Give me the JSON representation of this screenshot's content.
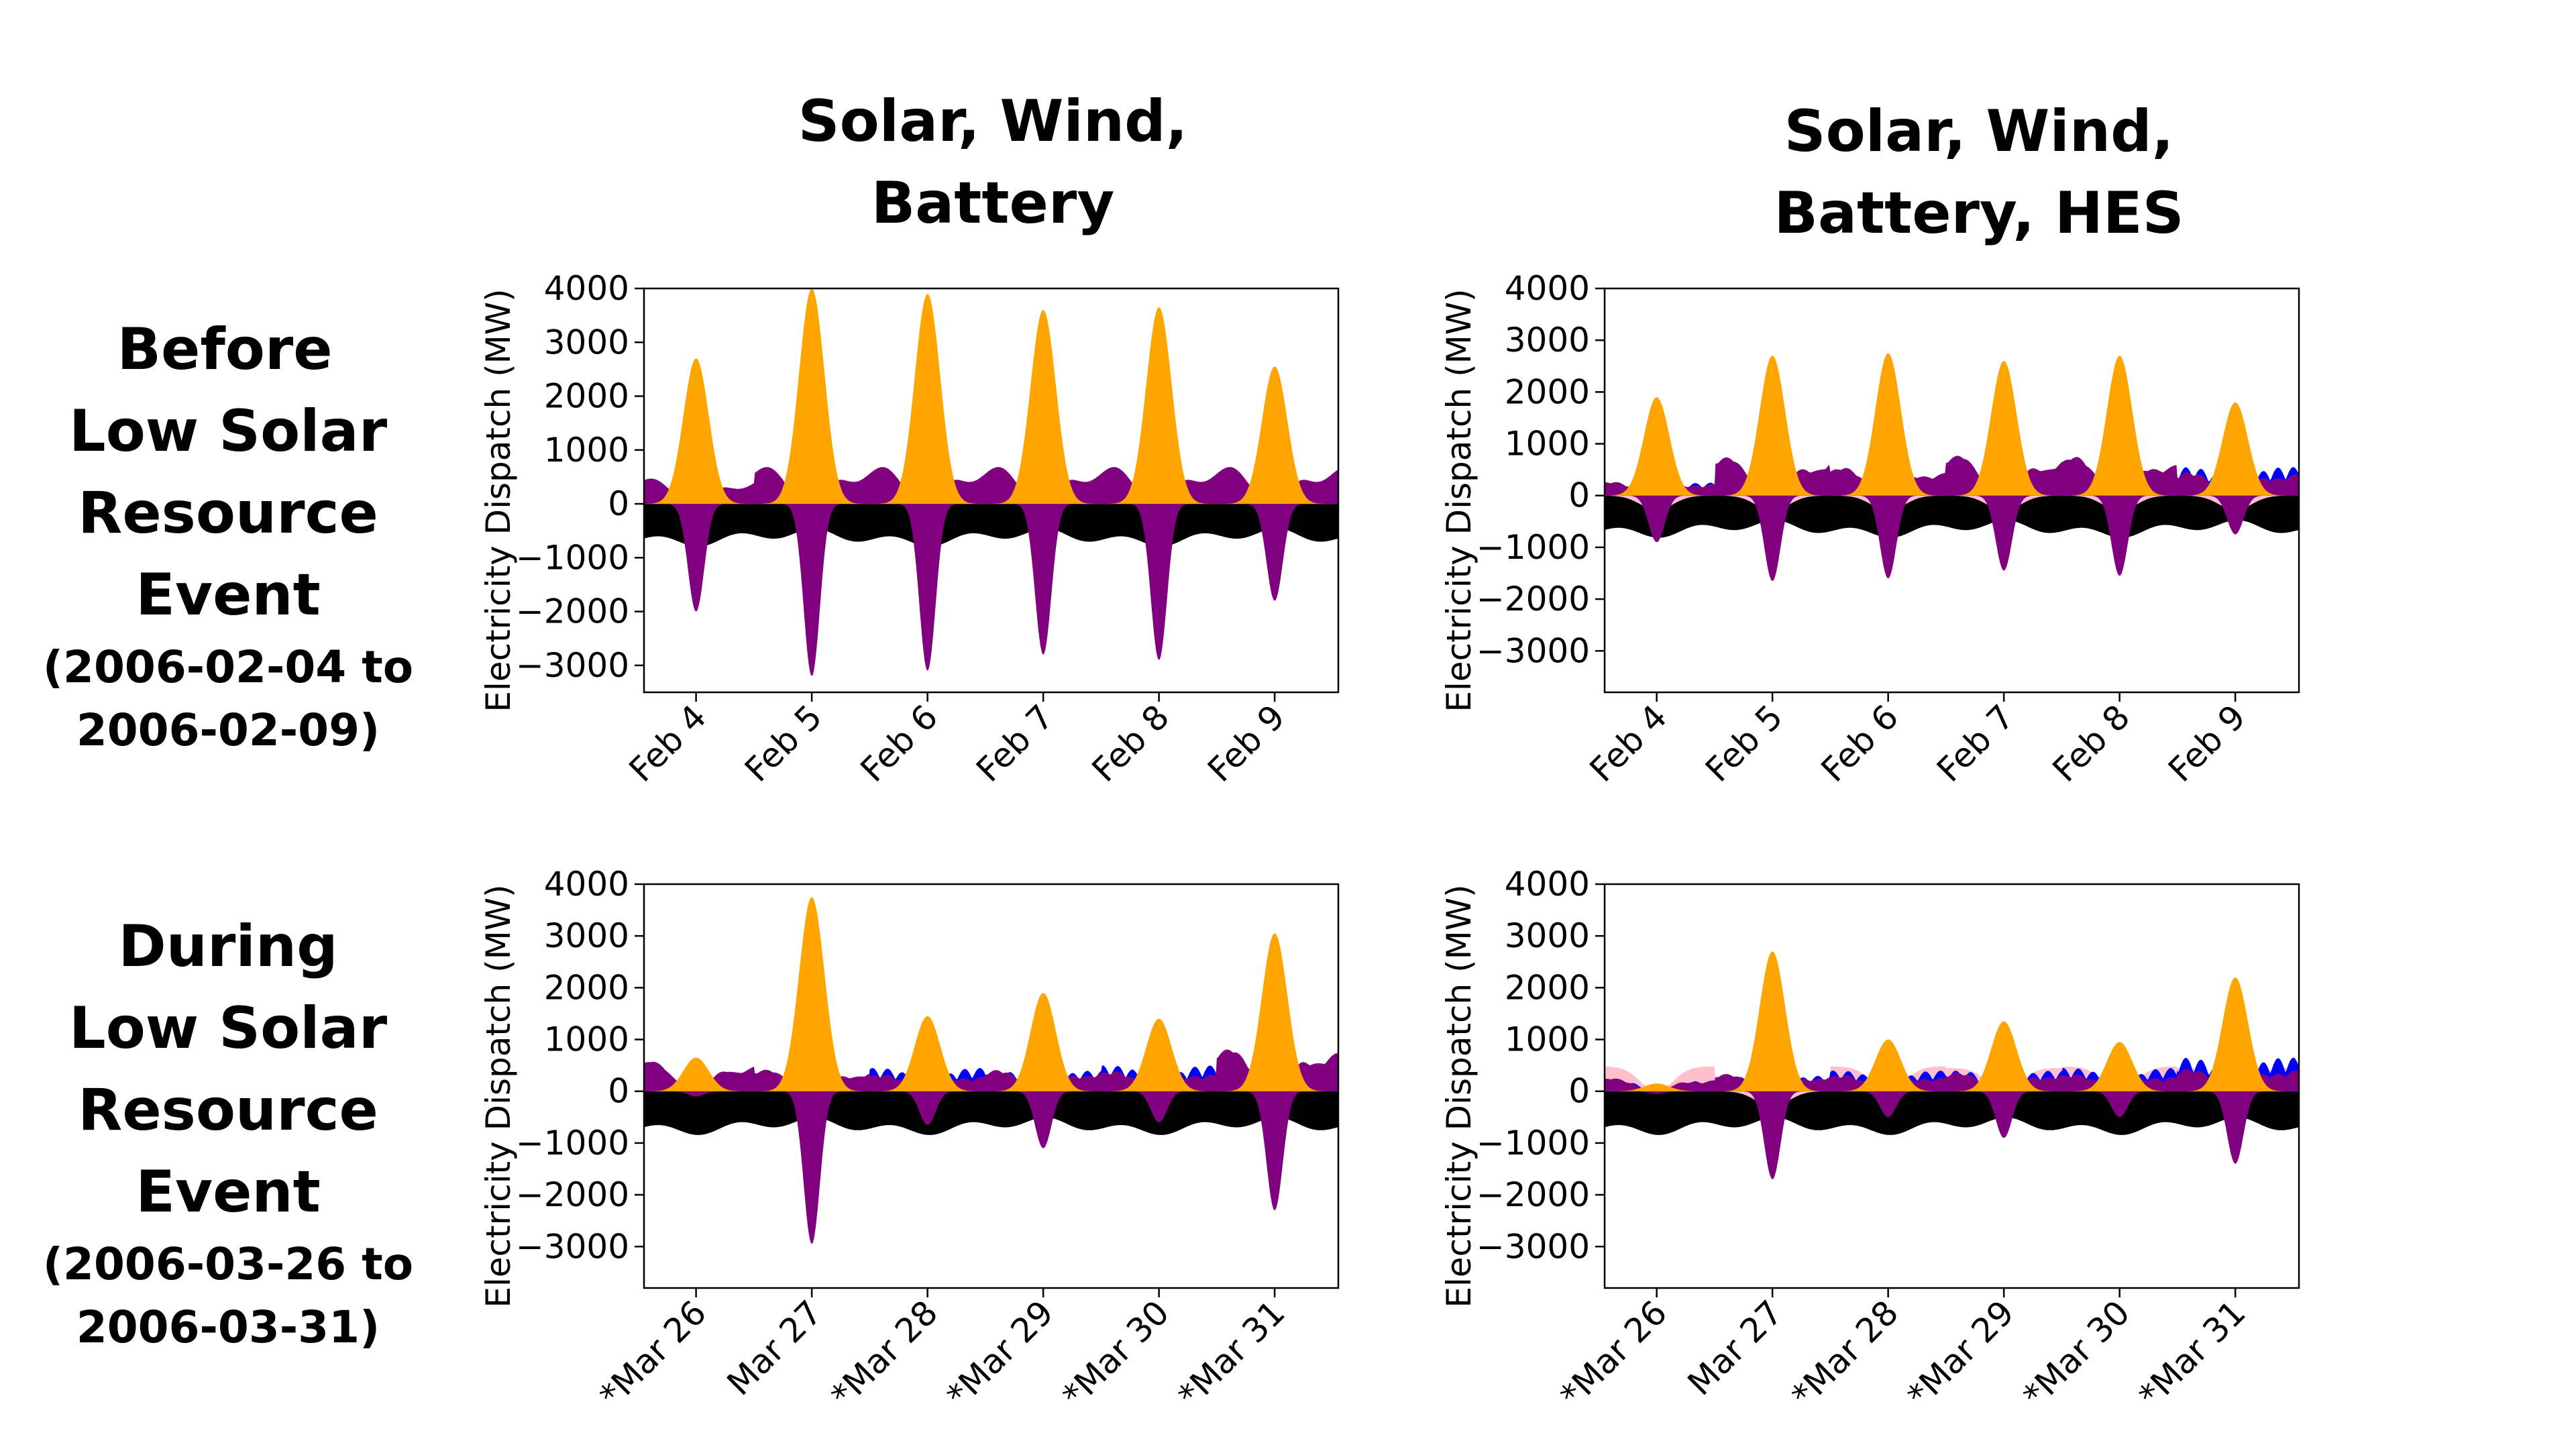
{
  "column_titles": [
    {
      "line1": "Solar, Wind,",
      "line2": "Battery"
    },
    {
      "line1": "Solar, Wind,",
      "line2": "Battery, HES"
    }
  ],
  "row_titles": [
    {
      "line1": "Before",
      "line2": "Low Solar",
      "line3": "Resource Event",
      "line4": "(2006-02-04 to",
      "line5": "2006-02-09)"
    },
    {
      "line1": "During",
      "line2": "Low Solar",
      "line3": "Resource Event",
      "line4": "(2006-03-26 to",
      "line5": "2006-03-31)"
    }
  ],
  "colors": {
    "solar": "#FFA500",
    "wind": "#0000FF",
    "battery": "#800080",
    "hes": "#FFC0CB",
    "load": "#000000"
  },
  "chart_data": [
    {
      "type": "area",
      "panel": "Solar, Wind, Battery — Before Low Solar Resource Event",
      "ylabel": "Electricity Dispatch (MW)",
      "ylim": [
        -3500,
        4000
      ],
      "yticks": [
        4000,
        3000,
        2000,
        1000,
        0,
        -1000,
        -2000,
        -3000
      ],
      "x_unit": "days",
      "xlim": [
        -0.45,
        5.55
      ],
      "xticks": [
        {
          "x": 0,
          "label": "Feb 4"
        },
        {
          "x": 1,
          "label": "Feb 5"
        },
        {
          "x": 2,
          "label": "Feb 6"
        },
        {
          "x": 3,
          "label": "Feb 7"
        },
        {
          "x": 4,
          "label": "Feb 8"
        },
        {
          "x": 5,
          "label": "Feb 9"
        }
      ],
      "days": [
        {
          "solar": 2700,
          "batt_base": 480,
          "batt_dip": -2000,
          "wind": 0,
          "hes": 0
        },
        {
          "solar": 4000,
          "batt_base": 700,
          "batt_dip": -3200,
          "wind": 0,
          "hes": 0
        },
        {
          "solar": 3900,
          "batt_base": 700,
          "batt_dip": -3100,
          "wind": 0,
          "hes": 0
        },
        {
          "solar": 3600,
          "batt_base": 700,
          "batt_dip": -2800,
          "wind": 0,
          "hes": 0
        },
        {
          "solar": 3650,
          "batt_base": 700,
          "batt_dip": -2900,
          "wind": 0,
          "hes": 0
        },
        {
          "solar": 2550,
          "batt_base": 700,
          "batt_dip": -1800,
          "wind": 0,
          "hes": 0
        }
      ],
      "load_min": -800,
      "load_max": -450
    },
    {
      "type": "area",
      "panel": "Solar, Wind, Battery, HES — Before Low Solar Resource Event",
      "ylabel": "Electricity Dispatch (MW)",
      "ylim": [
        -3800,
        4000
      ],
      "yticks": [
        4000,
        3000,
        2000,
        1000,
        0,
        -1000,
        -2000,
        -3000
      ],
      "x_unit": "days",
      "xlim": [
        -0.45,
        5.55
      ],
      "xticks": [
        {
          "x": 0,
          "label": "Feb 4"
        },
        {
          "x": 1,
          "label": "Feb 5"
        },
        {
          "x": 2,
          "label": "Feb 6"
        },
        {
          "x": 3,
          "label": "Feb 7"
        },
        {
          "x": 4,
          "label": "Feb 8"
        },
        {
          "x": 5,
          "label": "Feb 9"
        }
      ],
      "days": [
        {
          "solar": 1900,
          "batt_base": 200,
          "batt_dip": -900,
          "wind": 250,
          "hes": -280
        },
        {
          "solar": 2700,
          "batt_base": 650,
          "batt_dip": -1650,
          "wind": 350,
          "hes": -300
        },
        {
          "solar": 2750,
          "batt_base": 450,
          "batt_dip": -1600,
          "wind": 350,
          "hes": -300
        },
        {
          "solar": 2600,
          "batt_base": 700,
          "batt_dip": -1450,
          "wind": 300,
          "hes": -300
        },
        {
          "solar": 2700,
          "batt_base": 650,
          "batt_dip": -1550,
          "wind": 400,
          "hes": -300
        },
        {
          "solar": 1800,
          "batt_base": 300,
          "batt_dip": -750,
          "wind": 550,
          "hes": -280
        }
      ],
      "load_min": -820,
      "load_max": -470
    },
    {
      "type": "area",
      "panel": "Solar, Wind, Battery — During Low Solar Resource Event",
      "ylabel": "Electricity Dispatch (MW)",
      "ylim": [
        -3800,
        4000
      ],
      "yticks": [
        4000,
        3000,
        2000,
        1000,
        0,
        -1000,
        -2000,
        -3000
      ],
      "x_unit": "days",
      "xlim": [
        -0.45,
        5.55
      ],
      "xticks": [
        {
          "x": 0,
          "label": "*Mar 26"
        },
        {
          "x": 1,
          "label": "Mar 27"
        },
        {
          "x": 2,
          "label": "*Mar 28"
        },
        {
          "x": 3,
          "label": "*Mar 29"
        },
        {
          "x": 4,
          "label": "*Mar 30"
        },
        {
          "x": 5,
          "label": "*Mar 31"
        }
      ],
      "days": [
        {
          "solar": 650,
          "batt_base": 550,
          "batt_dip": -100,
          "wind": 150,
          "hes": 0
        },
        {
          "solar": 3750,
          "batt_base": 350,
          "batt_dip": -2950,
          "wind": 250,
          "hes": 0
        },
        {
          "solar": 1450,
          "batt_base": 200,
          "batt_dip": -650,
          "wind": 450,
          "hes": 0
        },
        {
          "solar": 1900,
          "batt_base": 300,
          "batt_dip": -1100,
          "wind": 400,
          "hes": 0
        },
        {
          "solar": 1400,
          "batt_base": 250,
          "batt_dip": -600,
          "wind": 500,
          "hes": 0
        },
        {
          "solar": 3050,
          "batt_base": 700,
          "batt_dip": -2300,
          "wind": 450,
          "hes": 0
        }
      ],
      "load_min": -850,
      "load_max": -500
    },
    {
      "type": "area",
      "panel": "Solar, Wind, Battery, HES — During Low Solar Resource Event",
      "ylabel": "Electricity Dispatch (MW)",
      "ylim": [
        -3800,
        4000
      ],
      "yticks": [
        4000,
        3000,
        2000,
        1000,
        0,
        -1000,
        -2000,
        -3000
      ],
      "x_unit": "days",
      "xlim": [
        -0.45,
        5.55
      ],
      "xticks": [
        {
          "x": 0,
          "label": "*Mar 26"
        },
        {
          "x": 1,
          "label": "Mar 27"
        },
        {
          "x": 2,
          "label": "*Mar 28"
        },
        {
          "x": 3,
          "label": "*Mar 29"
        },
        {
          "x": 4,
          "label": "*Mar 30"
        },
        {
          "x": 5,
          "label": "*Mar 31"
        }
      ],
      "days": [
        {
          "solar": 150,
          "batt_base": 200,
          "batt_dip": -50,
          "wind": 200,
          "hes": 480
        },
        {
          "solar": 2700,
          "batt_base": 250,
          "batt_dip": -1700,
          "wind": 300,
          "hes": -300
        },
        {
          "solar": 1000,
          "batt_base": 200,
          "batt_dip": -500,
          "wind": 400,
          "hes": 480
        },
        {
          "solar": 1350,
          "batt_base": 250,
          "batt_dip": -900,
          "wind": 400,
          "hes": 450
        },
        {
          "solar": 950,
          "batt_base": 200,
          "batt_dip": -500,
          "wind": 450,
          "hes": 480
        },
        {
          "solar": 2200,
          "batt_base": 250,
          "batt_dip": -1400,
          "wind": 650,
          "hes": 450
        }
      ],
      "load_min": -850,
      "load_max": -500
    }
  ]
}
